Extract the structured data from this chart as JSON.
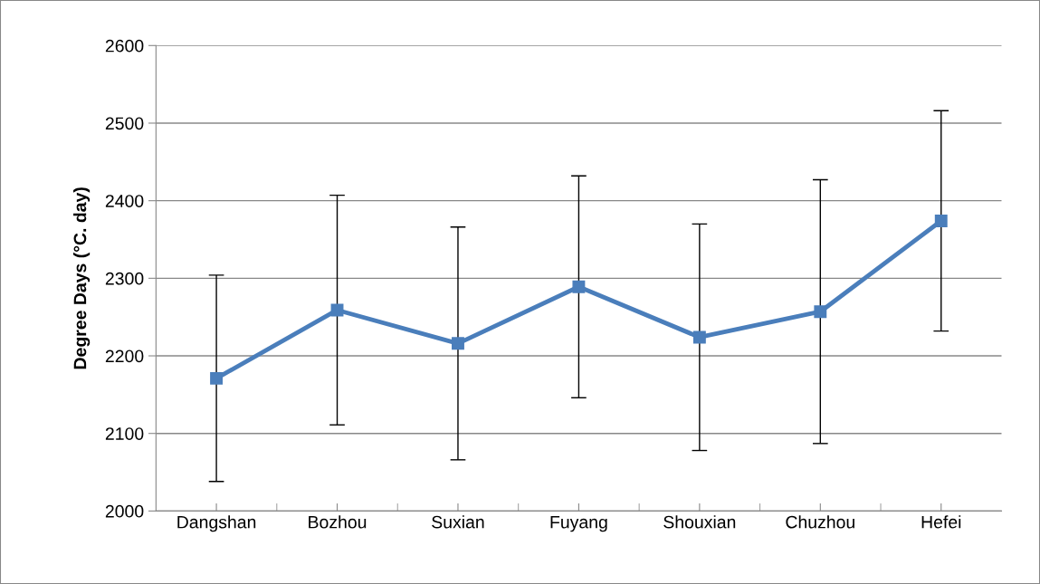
{
  "chart_data": {
    "type": "line",
    "ylabel": "Degree Days (°C. day)",
    "categories": [
      "Dangshan",
      "Bozhou",
      "Suxian",
      "Fuyang",
      "Shouxian",
      "Chuzhou",
      "Hefei"
    ],
    "series": [
      {
        "color": "#4a7ebb",
        "values": [
          2171,
          2259,
          2216,
          2289,
          2224,
          2257,
          2374
        ],
        "errors": [
          133,
          148,
          150,
          143,
          146,
          170,
          142
        ]
      }
    ],
    "ylim": [
      2000,
      2600
    ],
    "yticks": [
      2000,
      2100,
      2200,
      2300,
      2400,
      2500,
      2600
    ],
    "grid": "y",
    "marker": "square",
    "line_style": "solid"
  }
}
